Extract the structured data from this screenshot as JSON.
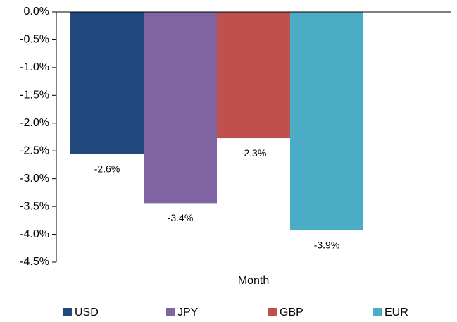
{
  "chart_data": {
    "type": "bar",
    "categories": [
      "Month"
    ],
    "series": [
      {
        "name": "USD",
        "color": "#1f497d",
        "values": [
          -2.56
        ],
        "value_labels": [
          "-2.6%"
        ]
      },
      {
        "name": "JPY",
        "color": "#8064a2",
        "values": [
          -3.44
        ],
        "value_labels": [
          "-3.4%"
        ]
      },
      {
        "name": "GBP",
        "color": "#c0504d",
        "values": [
          -2.27
        ],
        "value_labels": [
          "-2.3%"
        ]
      },
      {
        "name": "EUR",
        "color": "#4bacc6",
        "values": [
          -3.93
        ],
        "value_labels": [
          "-3.9%"
        ]
      }
    ],
    "ylim": [
      -4.5,
      0
    ],
    "yticks": [
      {
        "value": 0,
        "label": "0.0%"
      },
      {
        "value": -0.5,
        "label": "-0.5%"
      },
      {
        "value": -1,
        "label": "-1.0%"
      },
      {
        "value": -1.5,
        "label": "-1.5%"
      },
      {
        "value": -2,
        "label": "-2.0%"
      },
      {
        "value": -2.5,
        "label": "-2.5%"
      },
      {
        "value": -3,
        "label": "-3.0%"
      },
      {
        "value": -3.5,
        "label": "-3.5%"
      },
      {
        "value": -4,
        "label": "-4.0%"
      },
      {
        "value": -4.5,
        "label": "-4.5%"
      }
    ],
    "legend": "bottom"
  }
}
